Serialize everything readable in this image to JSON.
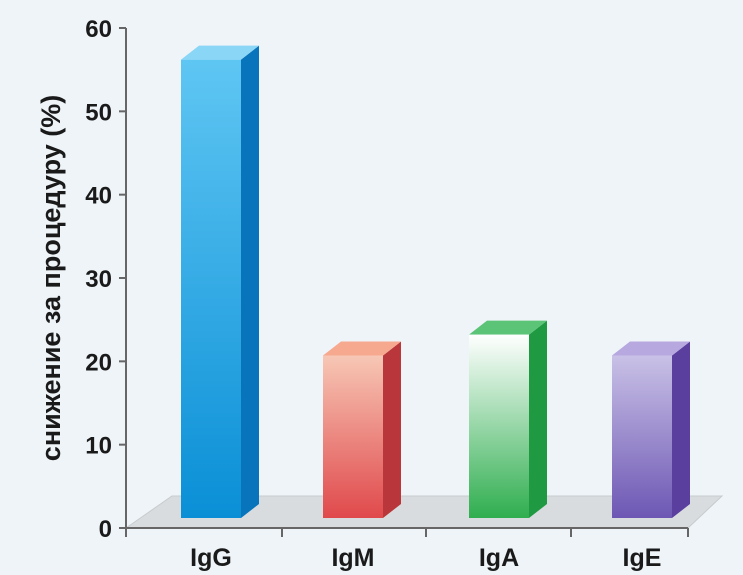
{
  "chart_data": {
    "type": "bar",
    "categories": [
      "IgG",
      "IgM",
      "IgA",
      "IgE"
    ],
    "values": [
      55,
      19.5,
      22,
      19.5
    ],
    "xlabel": "",
    "ylabel": "снижение за процедуру (%)",
    "ylim": [
      0,
      60
    ],
    "yticks": [
      0,
      10,
      20,
      30,
      40,
      50,
      60
    ],
    "grid": false,
    "legend": "none",
    "style": "3d-columns",
    "colors": {
      "IgG": {
        "front_light": "#5fc6f3",
        "front_dark": "#0a8fd6",
        "side": "#0874bc",
        "top": "#8ad6f7"
      },
      "IgM": {
        "front_light": "#f7c7b5",
        "front_dark": "#e0494c",
        "side": "#b9373a",
        "top": "#f7a98f"
      },
      "IgA": {
        "front_light": "#ffffff",
        "front_dark": "#2fae4f",
        "side": "#1f9a43",
        "top": "#5cc477"
      },
      "IgE": {
        "front_light": "#c9c1e6",
        "front_dark": "#6d57b4",
        "side": "#5a3f9e",
        "top": "#b7a9e0"
      }
    }
  }
}
